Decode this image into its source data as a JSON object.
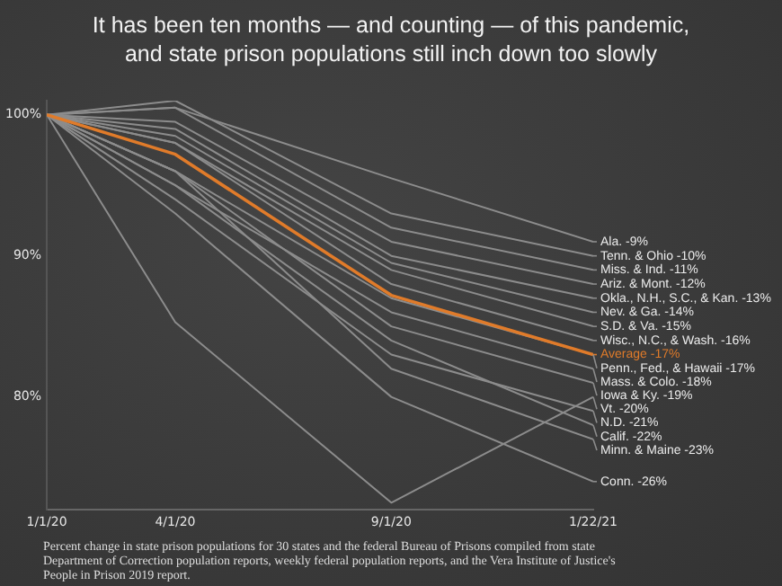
{
  "chart_data": {
    "type": "line",
    "title": "It has been ten months — and counting — of this pandemic, and state prison populations still inch down too slowly",
    "x": [
      "2020-01-01",
      "2020-04-01",
      "2020-09-01",
      "2021-01-22"
    ],
    "xlim": [
      "2020-01-01",
      "2021-01-22"
    ],
    "xticks": [
      {
        "value": "2020-01-01",
        "label": "1/1/20"
      },
      {
        "value": "2020-04-01",
        "label": "4/1/20"
      },
      {
        "value": "2020-09-01",
        "label": "9/1/20"
      },
      {
        "value": "2021-01-22",
        "label": "1/22/21"
      }
    ],
    "ylim": [
      72,
      101
    ],
    "yticks": [
      {
        "value": 80,
        "label": "80%"
      },
      {
        "value": 90,
        "label": "90%"
      },
      {
        "value": 100,
        "label": "100%"
      }
    ],
    "grid": false,
    "legend": "right",
    "marker": "none",
    "line_style": "solid",
    "series": [
      {
        "name": "Ala. -9%",
        "color": "#8c8c8c",
        "values": [
          100,
          100.5,
          95.5,
          91
        ]
      },
      {
        "name": "Tenn. & Ohio -10%",
        "color": "#8c8c8c",
        "values": [
          100,
          101,
          93,
          90
        ]
      },
      {
        "name": "Miss. & Ind. -11%",
        "color": "#8c8c8c",
        "values": [
          100,
          100.5,
          92,
          89
        ]
      },
      {
        "name": "Ariz. & Mont. -12%",
        "color": "#8c8c8c",
        "values": [
          100,
          99.5,
          91,
          88
        ]
      },
      {
        "name": "Okla., N.H., S.C., & Kan. -13%",
        "color": "#8c8c8c",
        "values": [
          100,
          99,
          90,
          87
        ]
      },
      {
        "name": "Nev. & Ga. -14%",
        "color": "#8c8c8c",
        "values": [
          100,
          98.5,
          89.5,
          86
        ]
      },
      {
        "name": "S.D. & Va. -15%",
        "color": "#8c8c8c",
        "values": [
          100,
          98,
          89,
          85
        ]
      },
      {
        "name": "Wisc., N.C., & Wash. -16%",
        "color": "#8c8c8c",
        "values": [
          100,
          98,
          88,
          84
        ]
      },
      {
        "name": "Average -17%",
        "color": "#e07b2a",
        "values": [
          100,
          97.2,
          87.2,
          83
        ]
      },
      {
        "name": "Penn., Fed., & Hawaii -17%",
        "color": "#8c8c8c",
        "values": [
          100,
          96,
          87,
          83
        ]
      },
      {
        "name": "Mass. & Colo. -18%",
        "color": "#8c8c8c",
        "values": [
          100,
          95,
          86,
          82
        ]
      },
      {
        "name": "Iowa & Ky. -19%",
        "color": "#8c8c8c",
        "values": [
          100,
          96,
          85,
          81
        ]
      },
      {
        "name": "Vt. -20%",
        "color": "#8c8c8c",
        "values": [
          100,
          85.3,
          72.5,
          80
        ]
      },
      {
        "name": "N.D. -21%",
        "color": "#8c8c8c",
        "values": [
          100,
          94,
          83,
          79
        ]
      },
      {
        "name": "Calif. -22%",
        "color": "#8c8c8c",
        "values": [
          100,
          95,
          84,
          78
        ]
      },
      {
        "name": "Minn. & Maine -23%",
        "color": "#8c8c8c",
        "values": [
          100,
          96,
          82,
          77
        ]
      },
      {
        "name": "Conn. -26%",
        "color": "#8c8c8c",
        "values": [
          100,
          93,
          80,
          74
        ]
      }
    ],
    "annotations": [
      "Percent change in state prison populations for 30 states and the federal Bureau of Prisons compiled from state Department of Correction population reports, weekly federal population reports, and the Vera Institute of Justice's People in Prison 2019 report."
    ]
  }
}
